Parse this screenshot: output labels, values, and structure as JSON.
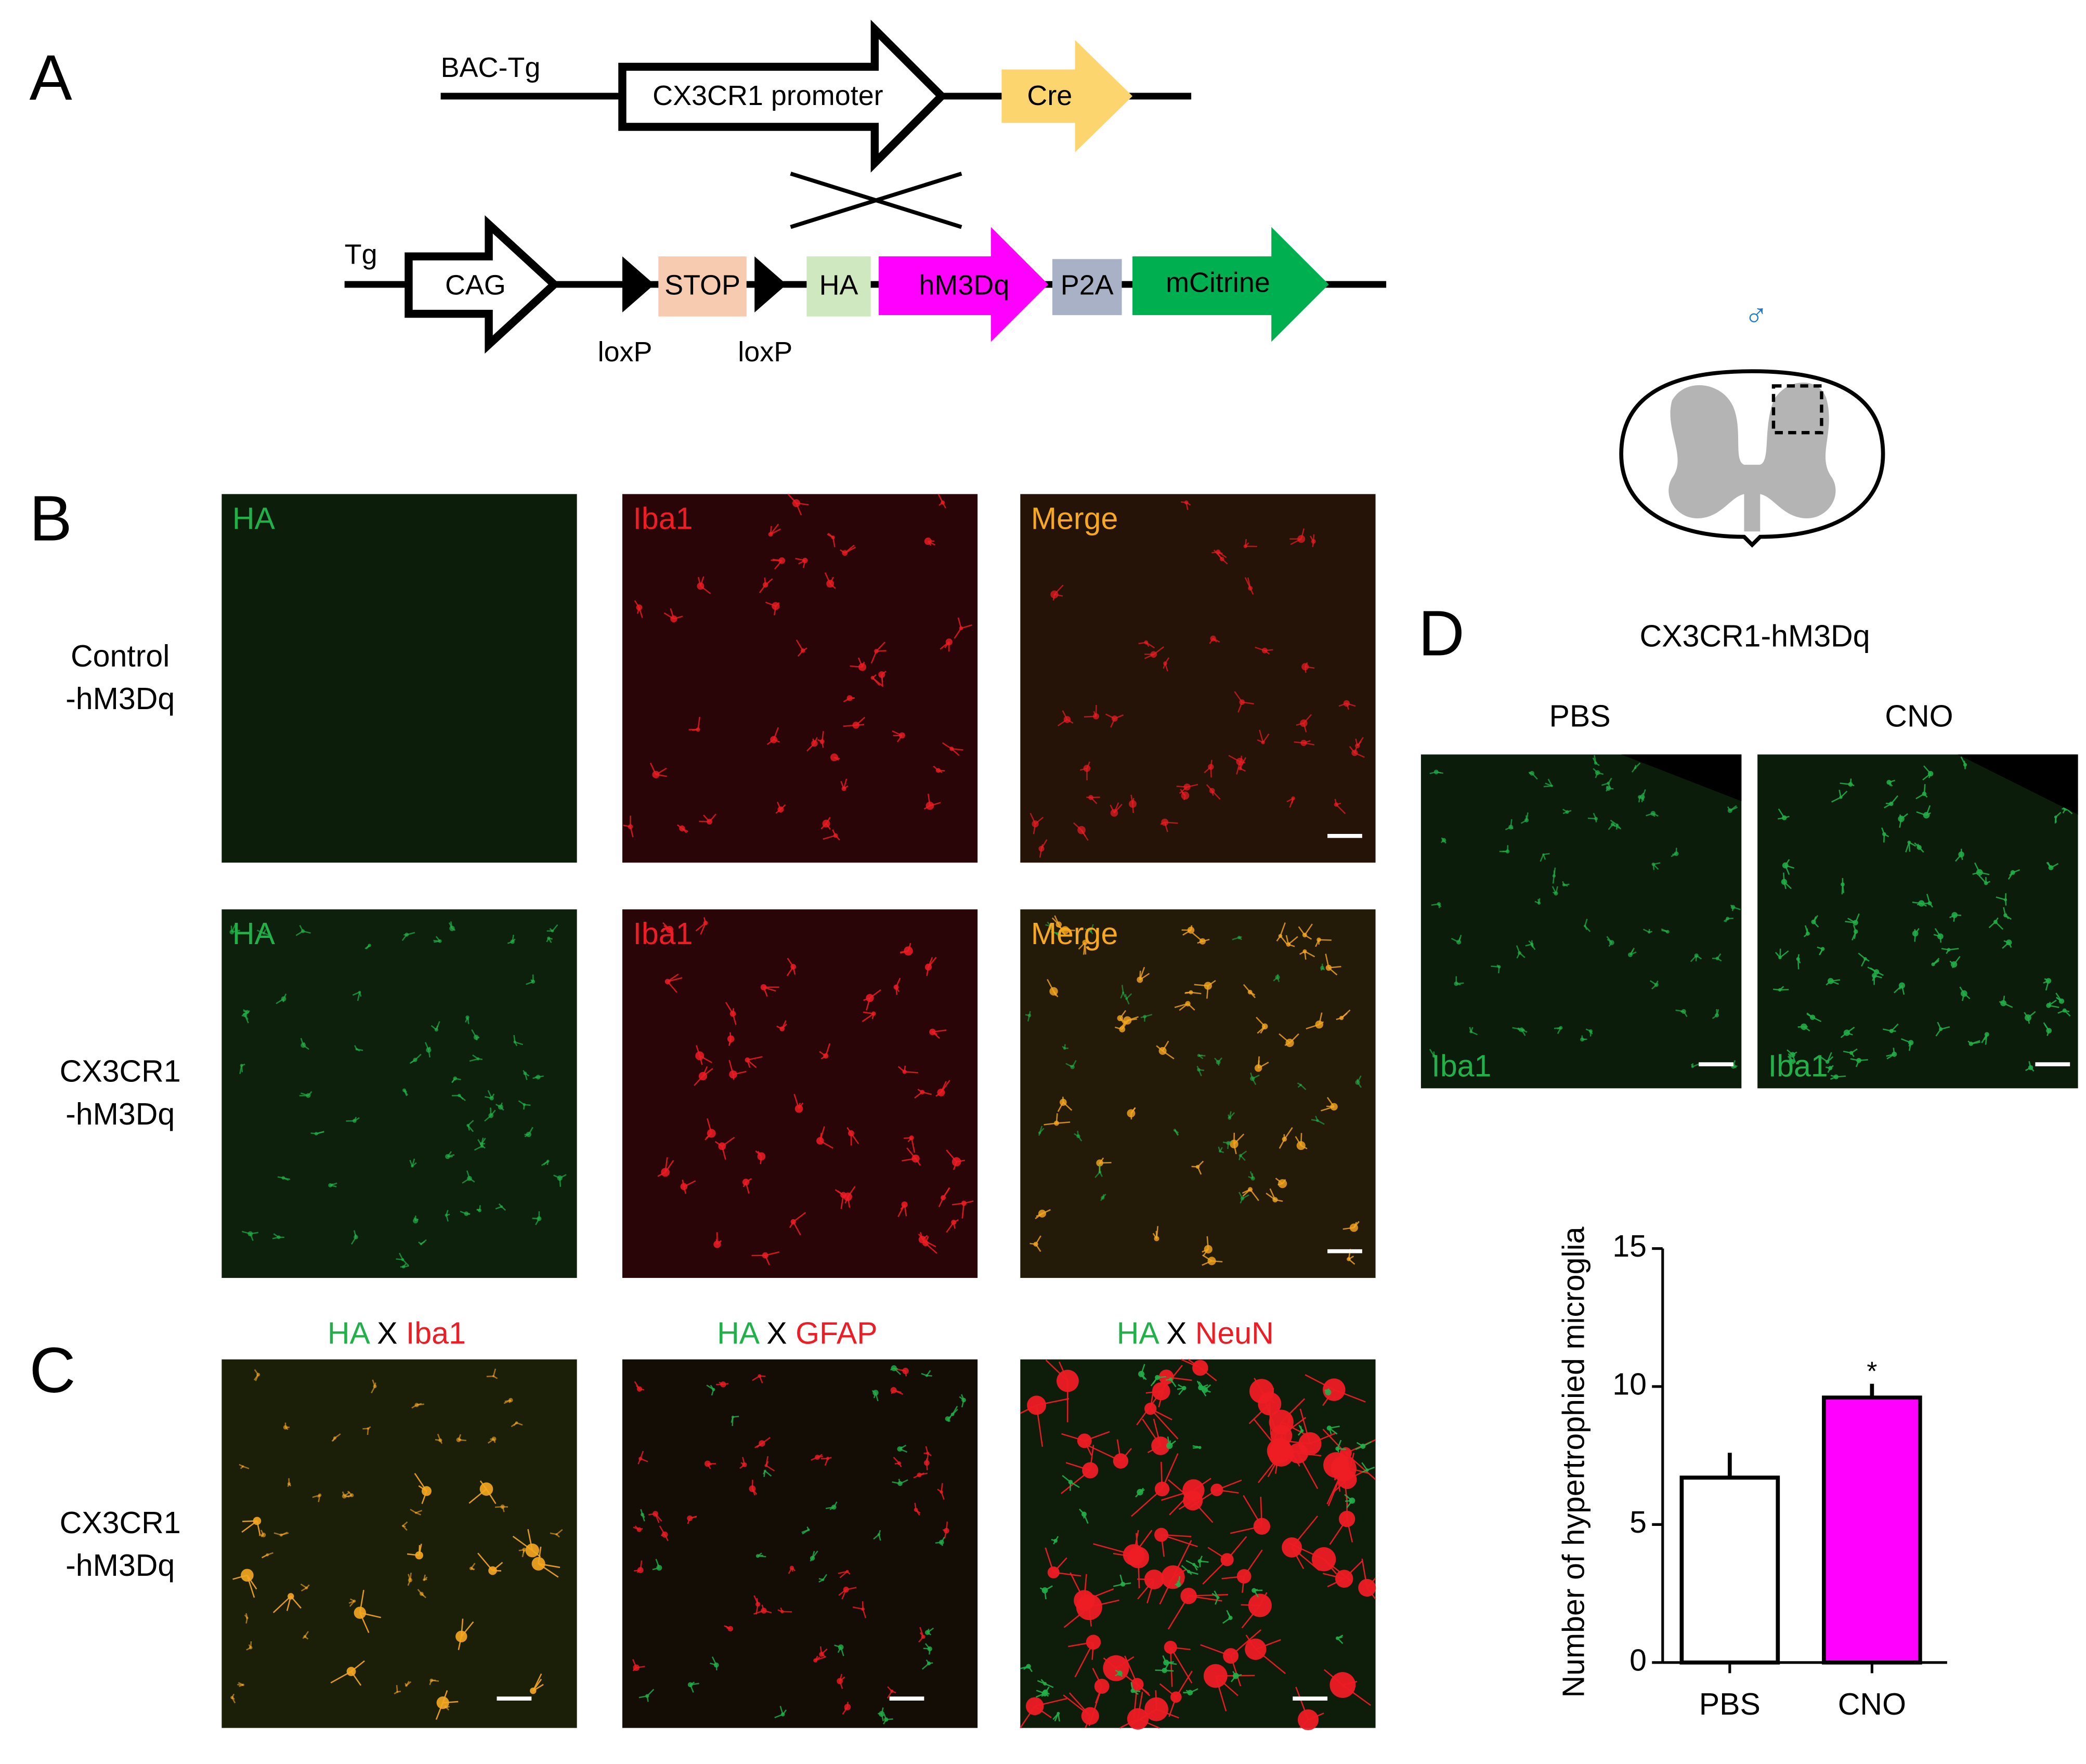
{
  "panel_labels": [
    "A",
    "B",
    "C",
    "D"
  ],
  "construct": {
    "bac_tg": {
      "label": "BAC-Tg",
      "promoter": "CX3CR1 promoter",
      "cre": "Cre"
    },
    "tg": {
      "label": "Tg",
      "elements": [
        "CAG",
        "STOP",
        "HA",
        "hM3Dq",
        "P2A",
        "mCitrine"
      ],
      "loxp": [
        "loxP",
        "loxP"
      ]
    }
  },
  "spinal_cord": {
    "symbol": "♂"
  },
  "panel_b": {
    "rows": [
      {
        "label": [
          "Control",
          "-hM3Dq"
        ],
        "channels": [
          "HA",
          "Iba1",
          "Merge"
        ]
      },
      {
        "label": [
          "CX3CR1",
          "-hM3Dq"
        ],
        "channels": [
          "HA",
          "Iba1",
          "Merge"
        ]
      }
    ]
  },
  "panel_c": {
    "titles": [
      [
        "HA",
        "X",
        "Iba1"
      ],
      [
        "HA",
        "X",
        "GFAP"
      ],
      [
        "HA",
        "X",
        "NeuN"
      ]
    ],
    "row_label": [
      "CX3CR1",
      "-hM3Dq"
    ]
  },
  "panel_d": {
    "title": "CX3CR1-hM3Dq",
    "columns": [
      "PBS",
      "CNO"
    ],
    "image_labels": [
      "Iba1",
      "Iba1"
    ]
  },
  "chart_data": {
    "type": "bar",
    "y_label": "Number of hypertrophied microglia",
    "categories": [
      "PBS",
      "CNO"
    ],
    "values": [
      6.7,
      9.6
    ],
    "errors": [
      0.9,
      0.5
    ],
    "colors": [
      "#ffffff",
      "#ff00ff"
    ],
    "significance": [
      null,
      "*"
    ],
    "ylim": [
      0,
      15
    ],
    "yticks": [
      0,
      5,
      10,
      15
    ]
  }
}
